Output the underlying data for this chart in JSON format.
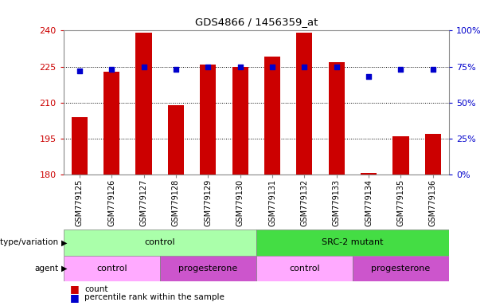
{
  "title": "GDS4866 / 1456359_at",
  "samples": [
    "GSM779125",
    "GSM779126",
    "GSM779127",
    "GSM779128",
    "GSM779129",
    "GSM779130",
    "GSM779131",
    "GSM779132",
    "GSM779133",
    "GSM779134",
    "GSM779135",
    "GSM779136"
  ],
  "counts": [
    204,
    223,
    239,
    209,
    226,
    225,
    229,
    239,
    227,
    180.5,
    196,
    197
  ],
  "percentile_ranks": [
    72,
    73,
    75,
    73,
    75,
    75,
    75,
    75,
    75,
    68,
    73,
    73
  ],
  "ylim": [
    180,
    240
  ],
  "yticks": [
    180,
    195,
    210,
    225,
    240
  ],
  "y2lim": [
    0,
    100
  ],
  "y2ticks": [
    0,
    25,
    50,
    75,
    100
  ],
  "y2ticklabels": [
    "0%",
    "25%",
    "50%",
    "75%",
    "100%"
  ],
  "bar_color": "#CC0000",
  "dot_color": "#0000CC",
  "bar_width": 0.5,
  "genotype_groups": [
    {
      "label": "control",
      "start": 0,
      "end": 6,
      "color": "#AAFFAA"
    },
    {
      "label": "SRC-2 mutant",
      "start": 6,
      "end": 12,
      "color": "#44DD44"
    }
  ],
  "agent_groups": [
    {
      "label": "control",
      "start": 0,
      "end": 3,
      "color": "#FFAAFF"
    },
    {
      "label": "progesterone",
      "start": 3,
      "end": 6,
      "color": "#CC55CC"
    },
    {
      "label": "control",
      "start": 6,
      "end": 9,
      "color": "#FFAAFF"
    },
    {
      "label": "progesterone",
      "start": 9,
      "end": 12,
      "color": "#CC55CC"
    }
  ],
  "legend_count_label": "count",
  "legend_percentile_label": "percentile rank within the sample",
  "genotype_label": "genotype/variation",
  "agent_label": "agent",
  "tick_color_left": "#CC0000",
  "tick_color_right": "#0000CC",
  "background_color": "#FFFFFF",
  "plot_bg_color": "#FFFFFF"
}
